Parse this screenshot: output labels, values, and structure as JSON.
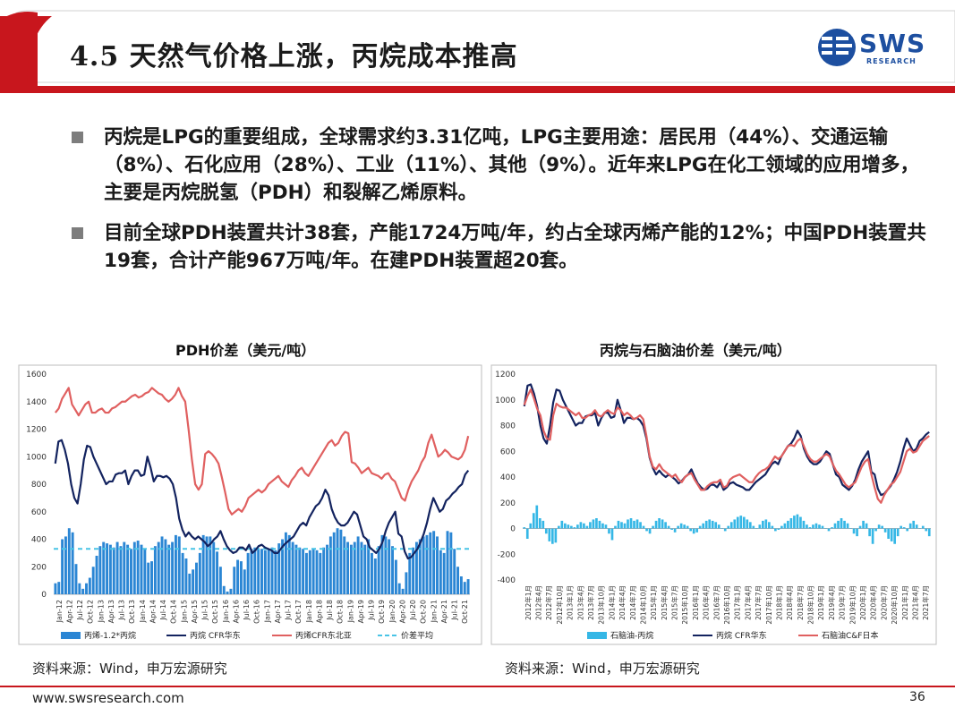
{
  "slide": {
    "title": "4.5 天然气价格上涨，丙烷成本推高",
    "logo_text": "SWS",
    "logo_sub": "RESEARCH",
    "bullets": [
      "丙烷是LPG的重要组成，全球需求约3.31亿吨，LPG主要用途：居民用（44%）、交通运输（8%）、石化应用（28%）、工业（11%）、其他（9%）。近年来LPG在化工领域的应用增多，主要是丙烷脱氢（PDH）和裂解乙烯原料。",
      "目前全球PDH装置共计38套，产能1724万吨/年，约占全球丙烯产能的12%；中国PDH装置共19套，合计产能967万吨/年。在建PDH装置超20套。"
    ],
    "source_left": "资料来源：Wind，申万宏源研究",
    "source_right": "资料来源：Wind，申万宏源研究",
    "website": "www.swsresearch.com",
    "page_number": "36",
    "colors": {
      "red": "#c8161d",
      "blue": "#1d4fa0",
      "navy": "#13235f",
      "salmon": "#e06060",
      "bar": "#2b86d4",
      "avg": "#49c4e6",
      "cyan": "#35b7e6"
    }
  },
  "chart_data": [
    {
      "type": "bar",
      "title": "PDH价差（美元/吨）",
      "ylim": [
        0,
        1600
      ],
      "yticks": [
        0,
        200,
        400,
        600,
        800,
        1000,
        1200,
        1400,
        1600
      ],
      "tick_labels": [
        "Jan-12",
        "Apr-12",
        "Jul-12",
        "Oct-12",
        "Jan-13",
        "Apr-13",
        "Jul-13",
        "Oct-13",
        "Jan-14",
        "Apr-14",
        "Jul-14",
        "Oct-14",
        "Jan-15",
        "Apr-15",
        "Jul-15",
        "Oct-15",
        "Jan-16",
        "Apr-16",
        "Jul-16",
        "Oct-16",
        "Jan-17",
        "Apr-17",
        "Jul-17",
        "Oct-17",
        "Jan-18",
        "Apr-18",
        "Jul-18",
        "Oct-18",
        "Jan-19",
        "Apr-19",
        "Jul-19",
        "Oct-19",
        "Jan-20",
        "Apr-20",
        "Jul-20",
        "Oct-20",
        "Jan-21",
        "Apr-21",
        "Jul-21",
        "Oct-21"
      ],
      "legend": [
        "丙烯-1.2*丙烷",
        "丙烷 CFR华东",
        "丙烯CFR东北亚",
        "价差平均"
      ],
      "average": 330,
      "series": [
        {
          "name": "丙烯-1.2*丙烷",
          "type": "bar",
          "values": [
            80,
            90,
            400,
            420,
            480,
            450,
            220,
            80,
            40,
            80,
            120,
            200,
            280,
            350,
            380,
            370,
            360,
            340,
            380,
            350,
            380,
            360,
            330,
            380,
            390,
            360,
            330,
            230,
            240,
            350,
            380,
            420,
            400,
            360,
            380,
            430,
            420,
            300,
            260,
            150,
            180,
            230,
            300,
            430,
            420,
            420,
            380,
            310,
            200,
            60,
            20,
            40,
            200,
            250,
            240,
            180,
            300,
            330,
            340,
            330,
            330,
            320,
            330,
            340,
            320,
            370,
            400,
            450,
            430,
            380,
            360,
            340,
            330,
            300,
            320,
            330,
            320,
            300,
            340,
            360,
            420,
            450,
            480,
            470,
            420,
            380,
            360,
            380,
            420,
            380,
            360,
            400,
            300,
            260,
            350,
            430,
            420,
            400,
            350,
            250,
            80,
            40,
            160,
            300,
            340,
            380,
            400,
            420,
            430,
            450,
            460,
            420,
            320,
            300,
            460,
            450,
            330,
            200,
            130,
            90,
            110
          ]
        },
        {
          "name": "丙烷 CFR华东",
          "type": "line",
          "values": [
            950,
            1110,
            1120,
            1050,
            950,
            800,
            700,
            660,
            800,
            980,
            1080,
            1070,
            1000,
            950,
            900,
            850,
            800,
            820,
            820,
            870,
            880,
            880,
            900,
            800,
            860,
            900,
            900,
            860,
            870,
            1000,
            920,
            820,
            860,
            860,
            850,
            860,
            840,
            800,
            700,
            550,
            470,
            420,
            450,
            420,
            400,
            420,
            400,
            380,
            350,
            370,
            400,
            420,
            460,
            400,
            350,
            320,
            300,
            310,
            340,
            340,
            320,
            360,
            300,
            320,
            350,
            360,
            340,
            330,
            320,
            300,
            300,
            330,
            360,
            380,
            400,
            420,
            460,
            500,
            520,
            500,
            560,
            600,
            640,
            660,
            700,
            760,
            720,
            620,
            560,
            520,
            500,
            500,
            520,
            560,
            600,
            580,
            500,
            420,
            400,
            340,
            320,
            300,
            330,
            380,
            460,
            520,
            560,
            600,
            440,
            420,
            310,
            260,
            270,
            300,
            330,
            380,
            440,
            520,
            620,
            700,
            650,
            600,
            620,
            680,
            700,
            730,
            750,
            780,
            800,
            870,
            900
          ]
        },
        {
          "name": "丙烯CFR东北亚",
          "type": "line",
          "values": [
            1320,
            1350,
            1420,
            1460,
            1500,
            1380,
            1340,
            1300,
            1340,
            1380,
            1400,
            1320,
            1320,
            1340,
            1350,
            1320,
            1320,
            1350,
            1360,
            1380,
            1400,
            1400,
            1420,
            1440,
            1450,
            1430,
            1440,
            1460,
            1470,
            1500,
            1480,
            1460,
            1450,
            1420,
            1400,
            1420,
            1450,
            1500,
            1440,
            1400,
            1200,
            980,
            800,
            760,
            800,
            1020,
            1040,
            1020,
            990,
            950,
            850,
            740,
            620,
            580,
            600,
            620,
            600,
            640,
            700,
            720,
            740,
            760,
            740,
            760,
            800,
            820,
            840,
            860,
            820,
            800,
            780,
            830,
            860,
            900,
            920,
            880,
            860,
            900,
            940,
            980,
            1020,
            1060,
            1100,
            1120,
            1080,
            1100,
            1150,
            1180,
            1170,
            960,
            950,
            920,
            880,
            900,
            920,
            880,
            870,
            860,
            840,
            870,
            880,
            840,
            820,
            760,
            700,
            680,
            760,
            820,
            860,
            900,
            960,
            1000,
            1100,
            1160,
            1080,
            1000,
            1020,
            1050,
            1030,
            1000,
            990,
            980,
            1000,
            1050,
            1150
          ]
        }
      ]
    },
    {
      "type": "bar",
      "title": "丙烷与石脑油价差（美元/吨）",
      "ylim": [
        -400,
        1200
      ],
      "yticks": [
        -400,
        -200,
        0,
        200,
        400,
        600,
        800,
        1000,
        1200
      ],
      "tick_labels": [
        "2012年1月",
        "2012年4月",
        "2012年7月",
        "2012年10月",
        "2013年1月",
        "2013年4月",
        "2013年7月",
        "2013年10月",
        "2014年1月",
        "2014年4月",
        "2014年7月",
        "2014年10月",
        "2015年1月",
        "2015年4月",
        "2015年7月",
        "2015年10月",
        "2016年1月",
        "2016年4月",
        "2016年7月",
        "2016年10月",
        "2017年1月",
        "2017年4月",
        "2017年7月",
        "2017年10月",
        "2018年1月",
        "2018年4月",
        "2018年7月",
        "2018年10月",
        "2019年1月",
        "2019年4月",
        "2019年7月",
        "2019年10月",
        "2020年1月",
        "2020年4月",
        "2020年7月",
        "2020年10月",
        "2021年1月",
        "2021年4月",
        "2021年7月"
      ],
      "legend": [
        "石脑油-丙烷",
        "丙烷 CFR华东",
        "石脑油C&F日本"
      ],
      "series": [
        {
          "name": "石脑油-丙烷",
          "type": "bar",
          "values": [
            10,
            -80,
            40,
            120,
            180,
            80,
            60,
            -40,
            -100,
            -120,
            -110,
            20,
            60,
            40,
            30,
            20,
            10,
            30,
            50,
            40,
            20,
            50,
            70,
            80,
            60,
            40,
            30,
            -40,
            -90,
            20,
            60,
            50,
            40,
            70,
            80,
            60,
            70,
            50,
            20,
            -20,
            -40,
            20,
            60,
            80,
            70,
            50,
            20,
            -10,
            -30,
            20,
            40,
            30,
            20,
            -20,
            -40,
            -30,
            20,
            40,
            60,
            70,
            60,
            50,
            30,
            0,
            -20,
            20,
            50,
            70,
            90,
            100,
            90,
            70,
            50,
            20,
            0,
            30,
            60,
            70,
            50,
            20,
            -20,
            -10,
            20,
            40,
            60,
            80,
            100,
            110,
            90,
            60,
            30,
            10,
            30,
            40,
            30,
            20,
            0,
            -20,
            10,
            40,
            60,
            80,
            60,
            40,
            0,
            -40,
            -60,
            20,
            60,
            40,
            -60,
            -120,
            -20,
            30,
            20,
            -30,
            -80,
            -100,
            -120,
            -60,
            20,
            10,
            -20,
            40,
            60,
            30,
            0,
            20,
            -20,
            -60
          ]
        },
        {
          "name": "丙烷 CFR华东",
          "type": "line",
          "values": [
            950,
            1110,
            1120,
            1050,
            950,
            800,
            700,
            660,
            800,
            980,
            1080,
            1070,
            1000,
            950,
            900,
            850,
            800,
            820,
            820,
            870,
            880,
            880,
            900,
            800,
            860,
            900,
            900,
            860,
            870,
            1000,
            920,
            820,
            860,
            860,
            850,
            860,
            840,
            800,
            700,
            550,
            470,
            420,
            450,
            420,
            400,
            420,
            400,
            380,
            350,
            370,
            400,
            420,
            460,
            400,
            350,
            320,
            300,
            310,
            340,
            340,
            320,
            360,
            300,
            320,
            350,
            360,
            340,
            330,
            320,
            300,
            300,
            330,
            360,
            380,
            400,
            420,
            460,
            500,
            520,
            500,
            560,
            600,
            640,
            660,
            700,
            760,
            720,
            620,
            560,
            520,
            500,
            500,
            520,
            560,
            600,
            580,
            500,
            420,
            400,
            340,
            320,
            300,
            330,
            380,
            460,
            520,
            560,
            600,
            440,
            420,
            310,
            260,
            270,
            300,
            330,
            380,
            440,
            520,
            620,
            700,
            650,
            600,
            620,
            680,
            700,
            730,
            750
          ]
        },
        {
          "name": "石脑油C&F日本",
          "type": "line",
          "values": [
            960,
            1030,
            1080,
            1010,
            930,
            880,
            760,
            700,
            690,
            880,
            970,
            950,
            940,
            940,
            920,
            900,
            880,
            900,
            860,
            860,
            880,
            890,
            920,
            880,
            870,
            900,
            920,
            900,
            890,
            940,
            920,
            880,
            900,
            880,
            850,
            860,
            880,
            850,
            720,
            560,
            480,
            460,
            500,
            460,
            440,
            420,
            400,
            420,
            380,
            360,
            400,
            420,
            430,
            380,
            340,
            300,
            300,
            330,
            350,
            360,
            360,
            380,
            320,
            330,
            380,
            400,
            410,
            420,
            400,
            380,
            360,
            360,
            400,
            430,
            450,
            460,
            480,
            520,
            560,
            540,
            560,
            600,
            640,
            650,
            640,
            680,
            700,
            640,
            580,
            540,
            520,
            520,
            540,
            560,
            580,
            560,
            500,
            450,
            420,
            380,
            340,
            320,
            340,
            360,
            420,
            480,
            520,
            540,
            420,
            320,
            230,
            200,
            260,
            300,
            340,
            360,
            400,
            440,
            520,
            600,
            620,
            590,
            600,
            640,
            680,
            700,
            720
          ]
        }
      ]
    }
  ]
}
